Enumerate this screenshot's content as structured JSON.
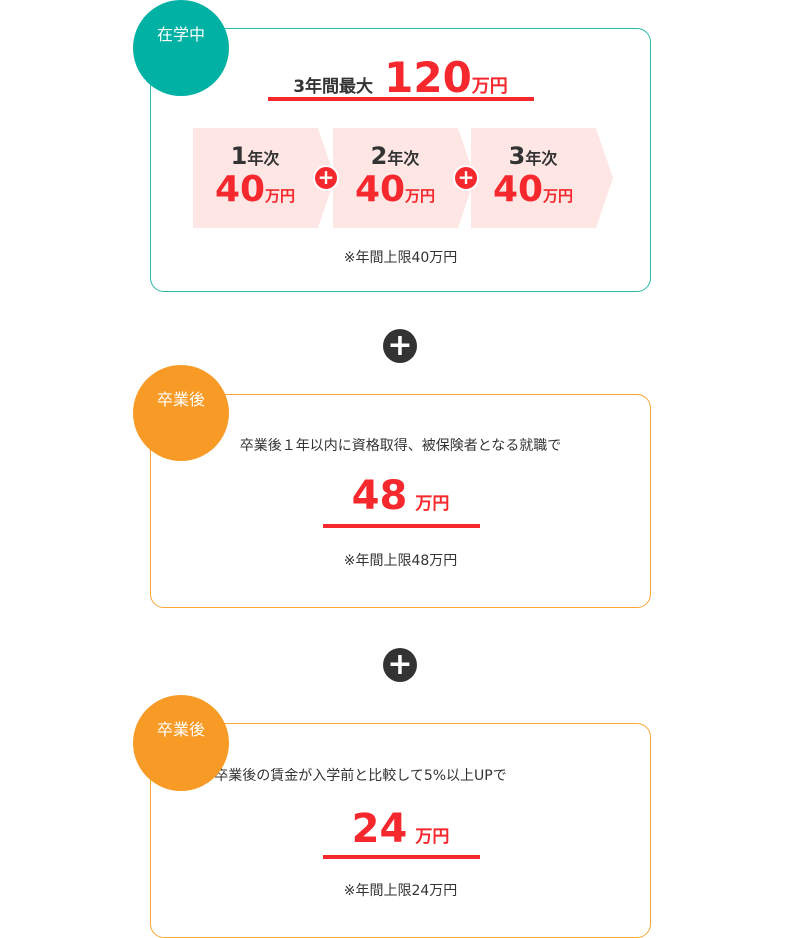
{
  "in_school": {
    "badge": "在学中",
    "title_prefix": "3年間最大",
    "title_amount": "120",
    "title_unit": "万円",
    "years": [
      {
        "num": "1",
        "label": "年次",
        "amount": "40",
        "unit": "万円"
      },
      {
        "num": "2",
        "label": "年次",
        "amount": "40",
        "unit": "万円"
      },
      {
        "num": "3",
        "label": "年次",
        "amount": "40",
        "unit": "万円"
      }
    ],
    "plus": "+",
    "note": "※年間上限40万円"
  },
  "separator_plus": "+",
  "after_grad_1": {
    "badge": "卒業後",
    "condition": "卒業後１年以内に資格取得、被保険者となる就職で",
    "amount": "48",
    "unit": "万円",
    "note": "※年間上限48万円"
  },
  "after_grad_2": {
    "badge": "卒業後",
    "condition": "卒業後の賃金が入学前と比較して5%以上UPで",
    "amount": "24",
    "unit": "万円",
    "note": "※年間上限24万円"
  },
  "colors": {
    "teal": "#00b1a4",
    "orange": "#f79a26",
    "red": "#f5282d",
    "pink": "#fde6e4"
  }
}
